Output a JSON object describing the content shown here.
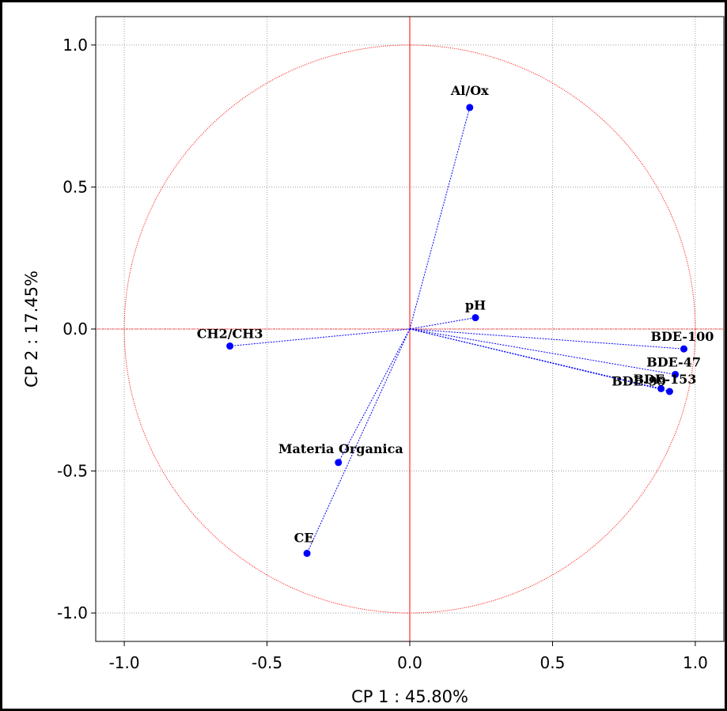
{
  "chart_data": {
    "type": "scatter",
    "subtype": "pca-correlation-circle",
    "title": "",
    "xlabel": "CP 1 : 45.80%",
    "ylabel": "CP 2 : 17.45%",
    "xlim": [
      -1.1,
      1.1
    ],
    "ylim": [
      -1.1,
      1.1
    ],
    "xticks": [
      -1.0,
      -0.5,
      0.0,
      0.5,
      1.0
    ],
    "yticks": [
      1.0,
      0.5,
      0.0,
      -0.5,
      -1.0
    ],
    "xtick_labels": [
      "-1.0",
      "-0.5",
      "0.0",
      "0.5",
      "1.0"
    ],
    "ytick_labels": [
      "1.0",
      "0.5",
      "0.0",
      "-0.5",
      "-1.0"
    ],
    "grid": true,
    "unit_circle": true,
    "colors": {
      "points": "#0000ff",
      "circle": "#ff0000",
      "axes": "#ff0000",
      "grid": "#a0a0a0"
    },
    "points": [
      {
        "label": "Al/Ox",
        "x": 0.21,
        "y": 0.78
      },
      {
        "label": "pH",
        "x": 0.23,
        "y": 0.04
      },
      {
        "label": "CH2/CH3",
        "x": -0.63,
        "y": -0.06
      },
      {
        "label": "BDE-100",
        "x": 0.96,
        "y": -0.07
      },
      {
        "label": "BDE-47",
        "x": 0.93,
        "y": -0.16
      },
      {
        "label": "BDE-99",
        "x": 0.88,
        "y": -0.21
      },
      {
        "label": "BDE-153",
        "x": 0.91,
        "y": -0.22
      },
      {
        "label": "Materia Organica",
        "x": -0.25,
        "y": -0.47
      },
      {
        "label": "CE",
        "x": -0.36,
        "y": -0.79
      }
    ]
  }
}
